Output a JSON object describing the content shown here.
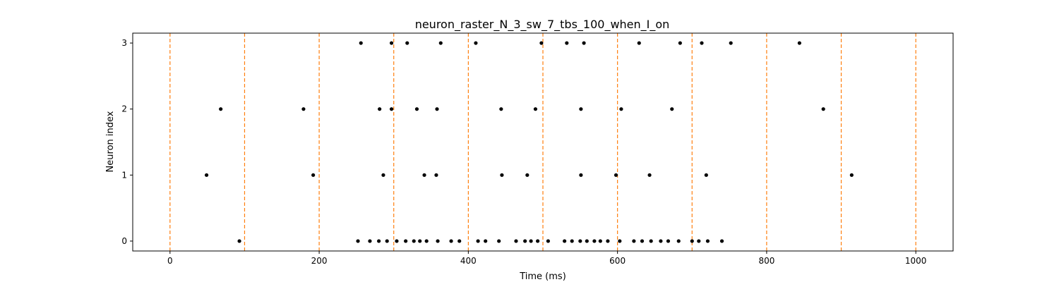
{
  "chart_data": {
    "type": "scatter",
    "title": "neuron_raster_N_3_sw_7_tbs_100_when_I_on",
    "xlabel": "Time (ms)",
    "ylabel": "Neuron index",
    "xlim": [
      -50,
      1050
    ],
    "ylim": [
      -0.15,
      3.15
    ],
    "x_ticks": [
      0,
      200,
      400,
      600,
      800,
      1000
    ],
    "y_ticks": [
      0,
      1,
      2,
      3
    ],
    "grid": false,
    "legend": "none",
    "marker_color": "#000000",
    "vline_color": "#ff7f0e",
    "vlines": [
      0,
      100,
      200,
      300,
      400,
      500,
      600,
      700,
      800,
      900,
      1000
    ],
    "series": [
      {
        "neuron": 0,
        "x": [
          93,
          252,
          268,
          280,
          291,
          304,
          316,
          327,
          335,
          344,
          359,
          377,
          388,
          413,
          423,
          441,
          464,
          476,
          484,
          493,
          507,
          529,
          539,
          550,
          559,
          569,
          577,
          587,
          603,
          622,
          633,
          645,
          658,
          668,
          682,
          700,
          709,
          721,
          740
        ]
      },
      {
        "neuron": 1,
        "x": [
          49,
          192,
          286,
          341,
          357,
          445,
          479,
          551,
          598,
          643,
          719,
          914
        ]
      },
      {
        "neuron": 2,
        "x": [
          68,
          179,
          281,
          297,
          331,
          358,
          444,
          490,
          551,
          605,
          673,
          876
        ]
      },
      {
        "neuron": 3,
        "x": [
          256,
          297,
          318,
          363,
          410,
          498,
          532,
          555,
          629,
          684,
          713,
          752,
          844
        ]
      }
    ]
  }
}
